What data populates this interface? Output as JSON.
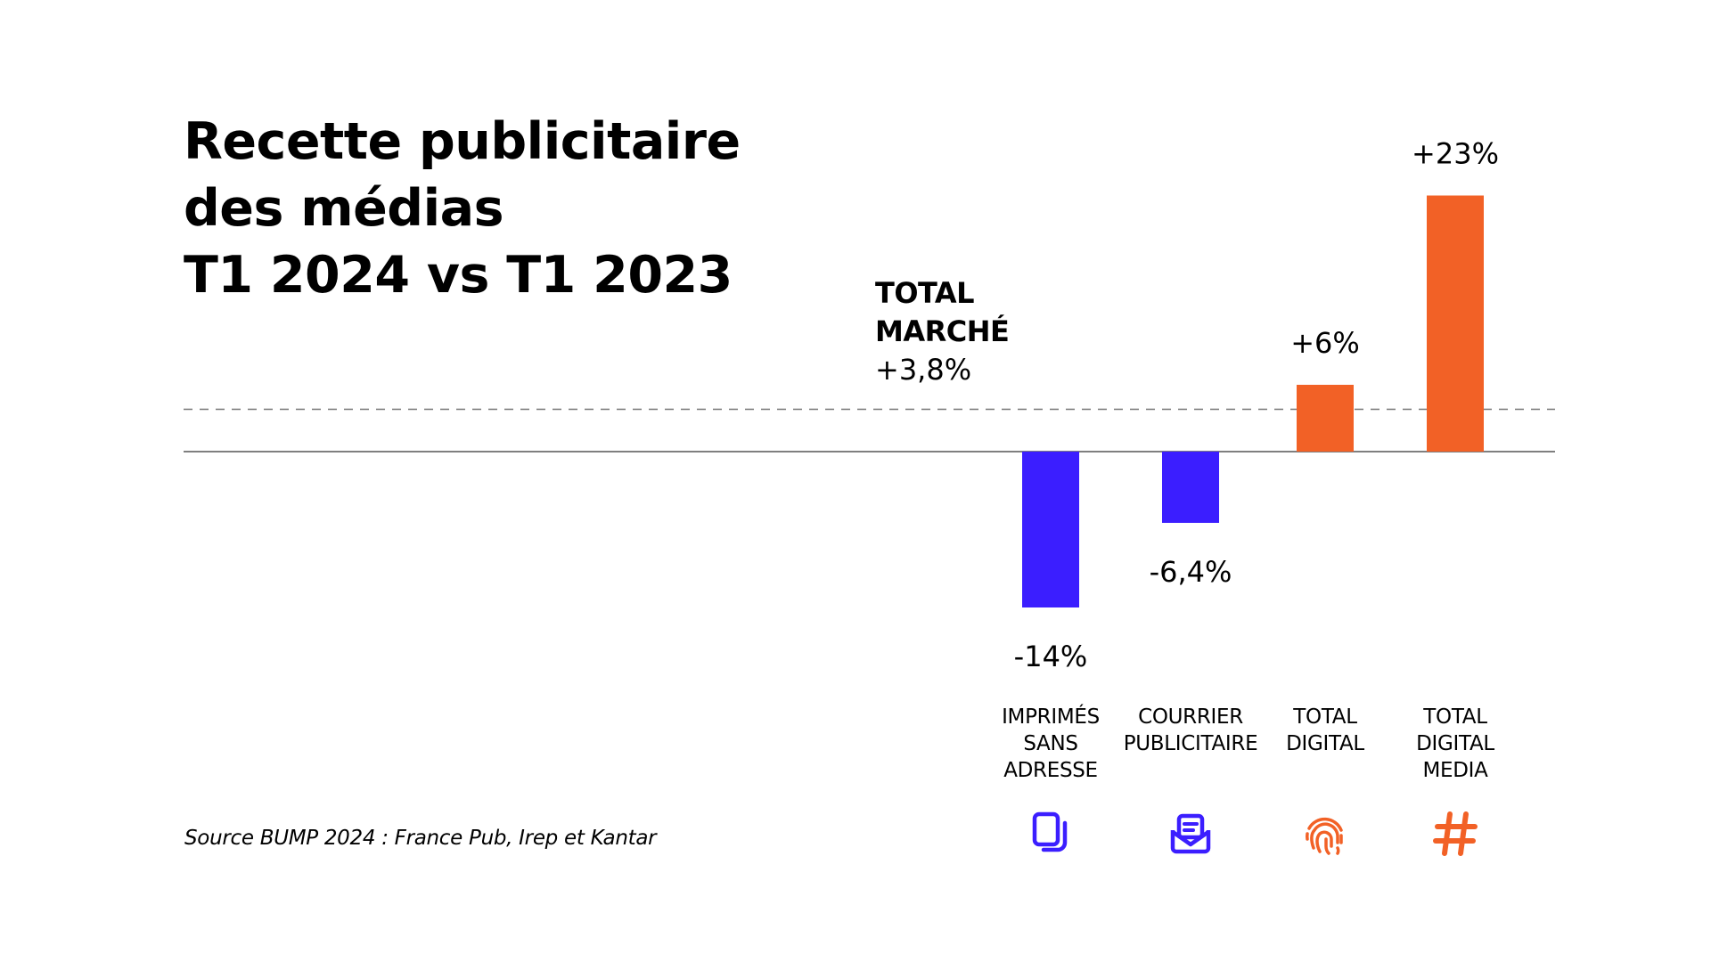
{
  "colors": {
    "negative": "#3b1eff",
    "positive": "#f26126",
    "axis": "#555555",
    "reference_line": "#777777",
    "text": "#000000"
  },
  "chart_data": {
    "type": "bar",
    "title_lines": [
      "Recette publicitaire",
      "des médias",
      "T1 2024 vs T1 2023"
    ],
    "categories": [
      {
        "label_lines": [
          "IMPRIMÉS",
          "SANS",
          "ADRESSE"
        ],
        "value": -14,
        "display": "-14%",
        "icon": "documents-icon",
        "color": "#3b1eff"
      },
      {
        "label_lines": [
          "COURRIER",
          "PUBLICITAIRE"
        ],
        "value": -6.4,
        "display": "-6,4%",
        "icon": "mail-envelope-icon",
        "color": "#3b1eff"
      },
      {
        "label_lines": [
          "TOTAL",
          "DIGITAL"
        ],
        "value": 6,
        "display": "+6%",
        "icon": "fingerprint-icon",
        "color": "#f26126"
      },
      {
        "label_lines": [
          "TOTAL",
          "DIGITAL",
          "MEDIA"
        ],
        "value": 23,
        "display": "+23%",
        "icon": "hashtag-icon",
        "color": "#f26126"
      }
    ],
    "reference_line": {
      "label_lines": [
        "TOTAL",
        "MARCHÉ"
      ],
      "display": "+3,8%",
      "value": 3.8,
      "style": "dashed"
    },
    "ylim": [
      -14,
      23
    ],
    "units": "%",
    "grid": false,
    "legend": "none",
    "source": "Source BUMP 2024 : France Pub, Irep et Kantar"
  }
}
